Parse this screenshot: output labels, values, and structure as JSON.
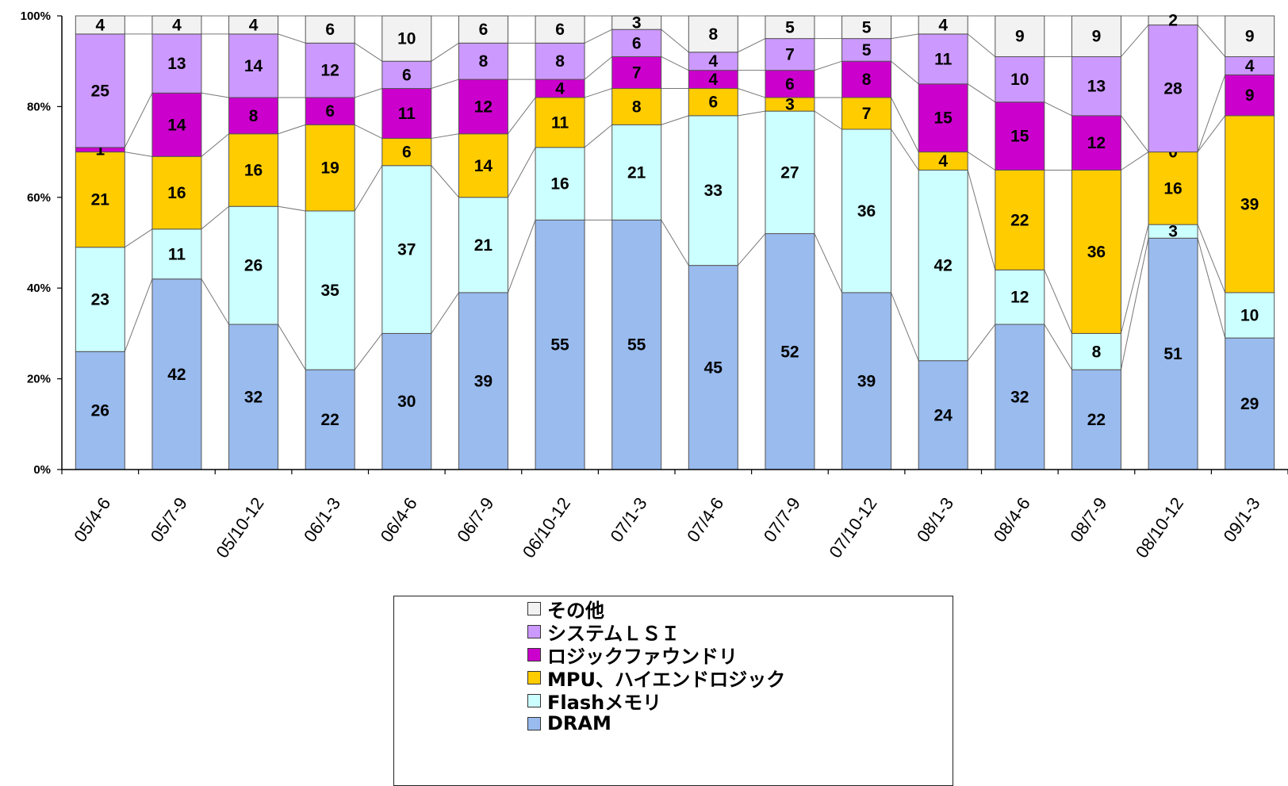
{
  "chart_data": {
    "type": "bar",
    "stacked": true,
    "normalized": true,
    "categories": [
      "05/4-6",
      "05/7-9",
      "05/10-12",
      "06/1-3",
      "06/4-6",
      "06/7-9",
      "06/10-12",
      "07/1-3",
      "07/4-6",
      "07/7-9",
      "07/10-12",
      "08/1-3",
      "08/4-6",
      "08/7-9",
      "08/10-12",
      "09/1-3"
    ],
    "series": [
      {
        "name": "DRAM",
        "color": "#99bbee",
        "values": [
          26,
          42,
          32,
          22,
          30,
          39,
          55,
          55,
          45,
          52,
          39,
          24,
          32,
          22,
          51,
          29
        ]
      },
      {
        "name": "Flashメモリ",
        "color": "#ccffff",
        "values": [
          23,
          11,
          26,
          35,
          37,
          21,
          16,
          21,
          33,
          27,
          36,
          42,
          12,
          8,
          3,
          10
        ]
      },
      {
        "name": "MPU、ハイエンドロジック",
        "color": "#ffcc00",
        "values": [
          21,
          16,
          16,
          19,
          6,
          14,
          11,
          8,
          6,
          3,
          7,
          4,
          22,
          36,
          16,
          39
        ]
      },
      {
        "name": "ロジックファウンドリ",
        "color": "#cc00cc",
        "values": [
          1,
          14,
          8,
          6,
          11,
          12,
          4,
          7,
          4,
          6,
          8,
          15,
          15,
          12,
          0,
          9
        ]
      },
      {
        "name": "システムＬＳＩ",
        "color": "#cc99ff",
        "values": [
          25,
          13,
          14,
          12,
          6,
          8,
          8,
          6,
          4,
          7,
          5,
          11,
          10,
          13,
          28,
          4
        ]
      },
      {
        "name": "その他",
        "color": "#f2f2f2",
        "values": [
          4,
          4,
          4,
          6,
          10,
          6,
          6,
          3,
          8,
          5,
          5,
          4,
          9,
          9,
          2,
          9
        ]
      }
    ],
    "ylim": [
      0,
      100
    ],
    "yticks": [
      "0%",
      "20%",
      "40%",
      "60%",
      "80%",
      "100%"
    ],
    "legend_position": "bottom",
    "grid": false
  }
}
